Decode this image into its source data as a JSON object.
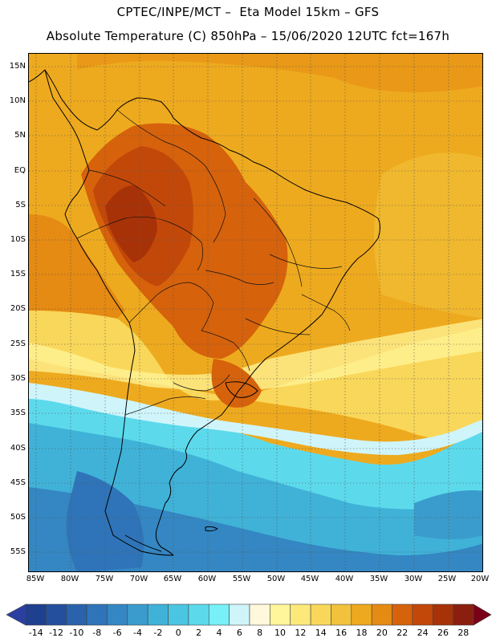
{
  "header": {
    "title_line1": "CPTEC/INPE/MCT –  Eta Model 15km – GFS",
    "title_line2": "Absolute Temperature (C) 850hPa – 15/06/2020 12UTC fct=167h"
  },
  "map": {
    "latitude_labels": [
      "15N",
      "10N",
      "5N",
      "EQ",
      "5S",
      "10S",
      "15S",
      "20S",
      "25S",
      "30S",
      "35S",
      "40S",
      "45S",
      "50S",
      "55S"
    ],
    "longitude_labels": [
      "85W",
      "80W",
      "75W",
      "70W",
      "65W",
      "60W",
      "55W",
      "50W",
      "45W",
      "40W",
      "35W",
      "30W",
      "25W",
      "20W"
    ],
    "field": "Absolute Temperature at 850hPa",
    "regions_summary": {
      "tropics_ocean": "16–20",
      "amazon_interior": "22–24",
      "southern_atlantic": "-2 to 4",
      "patagonia": "-8 to -4"
    }
  },
  "colorbar": {
    "labels": [
      "-14",
      "-12",
      "-10",
      "-8",
      "-6",
      "-4",
      "-2",
      "0",
      "2",
      "4",
      "6",
      "8",
      "10",
      "12",
      "14",
      "16",
      "18",
      "20",
      "22",
      "24",
      "26",
      "28"
    ],
    "colors": [
      "#1f3f8f",
      "#234f9d",
      "#2a62ac",
      "#2f74b8",
      "#3487c2",
      "#3a9ccd",
      "#40b2d8",
      "#4ac6e2",
      "#5cdaec",
      "#78f0f8",
      "#cff5fb",
      "#fff8dc",
      "#fff59a",
      "#fde97a",
      "#f9d75a",
      "#f2c23c",
      "#eeaa1e",
      "#e58a12",
      "#d6620c",
      "#c2480a",
      "#a83208",
      "#8a1f10"
    ],
    "under_color": "#2a3fa0",
    "over_color": "#7a0018"
  }
}
